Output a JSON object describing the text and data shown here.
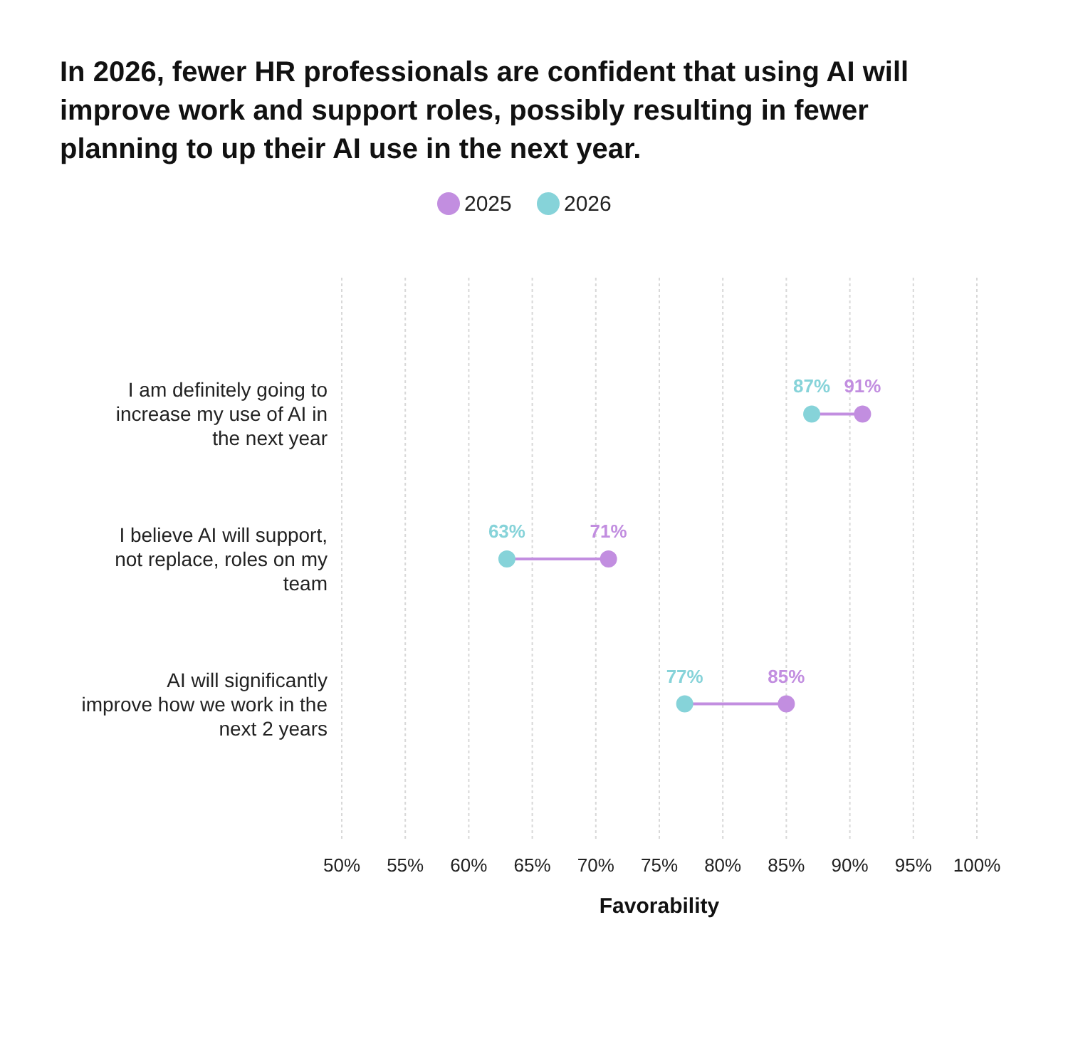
{
  "chart_data": {
    "type": "scatter",
    "orientation": "horizontal",
    "title": "In 2026, fewer HR professionals are confident that using AI will improve work and support roles, possibly resulting in fewer planning to up their AI use in the next year.",
    "xlabel": "Favorability",
    "categories": [
      "I am definitely going to increase my use of AI in the next year",
      "I believe AI will support, not replace, roles on my team",
      "AI will significantly improve how we work in the next 2 years"
    ],
    "series": [
      {
        "name": "2025",
        "color": "#c28ee0",
        "values": [
          91,
          71,
          85
        ],
        "value_labels": [
          "91%",
          "71%",
          "85%"
        ]
      },
      {
        "name": "2026",
        "color": "#86d3d9",
        "values": [
          87,
          63,
          77
        ],
        "value_labels": [
          "87%",
          "63%",
          "77%"
        ]
      }
    ],
    "xlim": [
      50,
      100
    ],
    "xticks": [
      {
        "value": 50,
        "label": "50%"
      },
      {
        "value": 55,
        "label": "55%"
      },
      {
        "value": 60,
        "label": "60%"
      },
      {
        "value": 65,
        "label": "65%"
      },
      {
        "value": 70,
        "label": "70%"
      },
      {
        "value": 75,
        "label": "75%"
      },
      {
        "value": 80,
        "label": "80%"
      },
      {
        "value": 85,
        "label": "85%"
      },
      {
        "value": 90,
        "label": "90%"
      },
      {
        "value": 95,
        "label": "95%"
      },
      {
        "value": 100,
        "label": "100%"
      }
    ],
    "grid": "x",
    "legend": "top",
    "marker": "circle"
  }
}
